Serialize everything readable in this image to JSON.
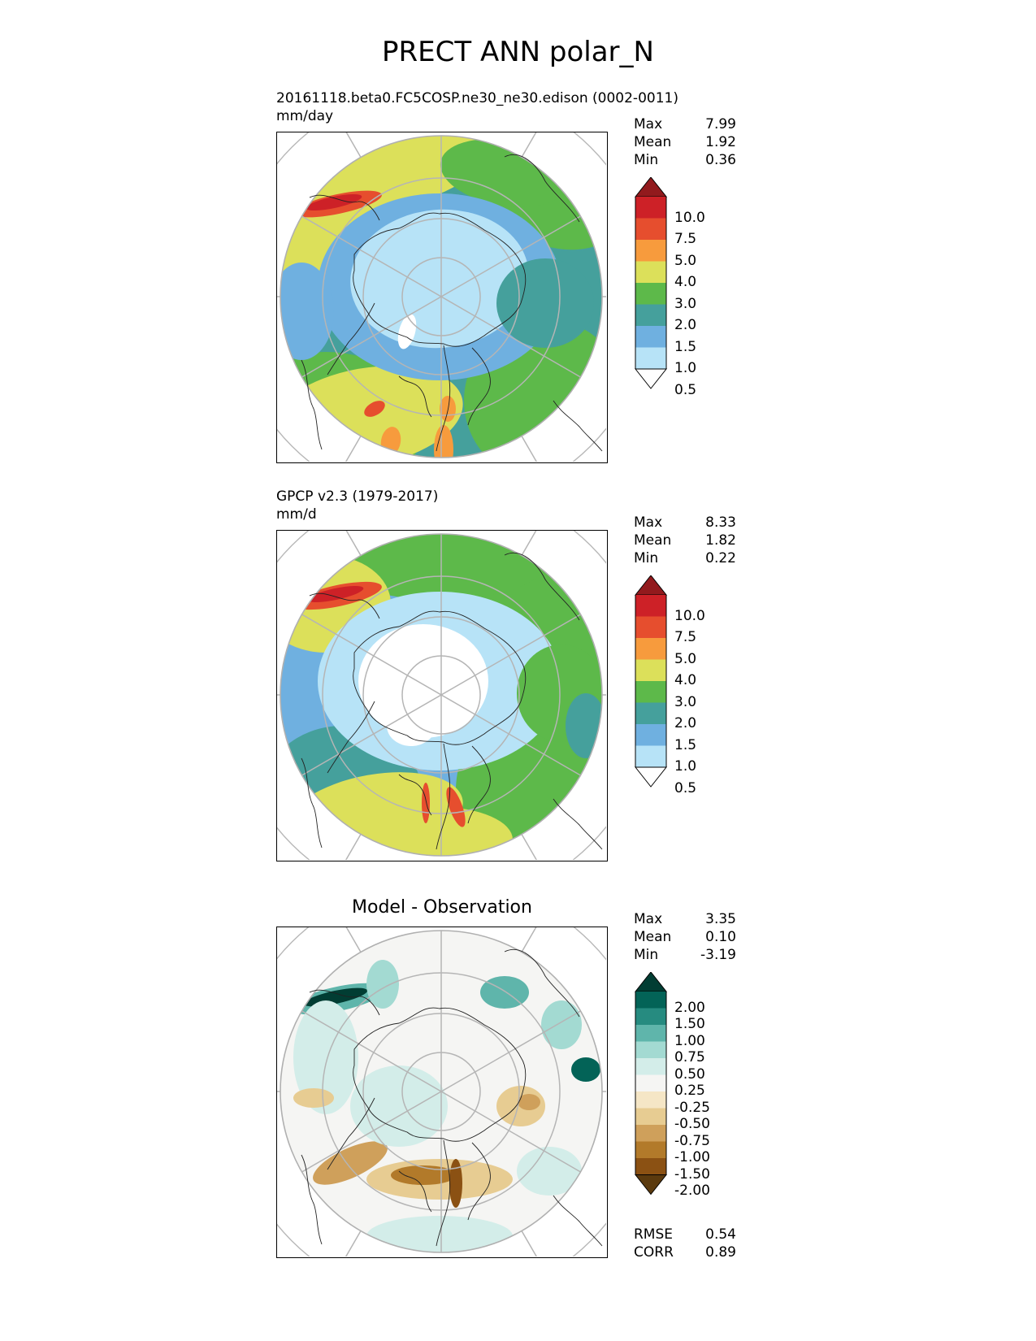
{
  "title": "PRECT ANN polar_N",
  "panels": [
    {
      "id": "model",
      "subtitle_lines": [
        "20161118.beta0.FC5COSP.ne30_ne30.edison (0002-0011)",
        "mm/day"
      ],
      "center_title": "",
      "stats": [
        {
          "label": "Max",
          "value": "7.99"
        },
        {
          "label": "Mean",
          "value": "1.92"
        },
        {
          "label": "Min",
          "value": "0.36"
        }
      ],
      "colorbar": {
        "labels": [
          "10.0",
          "7.5",
          "5.0",
          "4.0",
          "3.0",
          "2.0",
          "1.5",
          "1.0",
          "0.5"
        ],
        "colors": [
          "#ffffff",
          "#b7e3f7",
          "#6fb0e0",
          "#45a09c",
          "#5db94a",
          "#dce05a",
          "#f79b3d",
          "#e64e2e",
          "#cd2127",
          "#921a1d"
        ]
      }
    },
    {
      "id": "obs",
      "subtitle_lines": [
        "GPCP v2.3 (1979-2017)",
        "mm/d"
      ],
      "center_title": "",
      "stats": [
        {
          "label": "Max",
          "value": "8.33"
        },
        {
          "label": "Mean",
          "value": "1.82"
        },
        {
          "label": "Min",
          "value": "0.22"
        }
      ],
      "colorbar": {
        "labels": [
          "10.0",
          "7.5",
          "5.0",
          "4.0",
          "3.0",
          "2.0",
          "1.5",
          "1.0",
          "0.5"
        ],
        "colors": [
          "#ffffff",
          "#b7e3f7",
          "#6fb0e0",
          "#45a09c",
          "#5db94a",
          "#dce05a",
          "#f79b3d",
          "#e64e2e",
          "#cd2127",
          "#921a1d"
        ]
      }
    },
    {
      "id": "diff",
      "subtitle_lines": [],
      "center_title": "Model - Observation",
      "stats": [
        {
          "label": "Max",
          "value": "3.35"
        },
        {
          "label": "Mean",
          "value": "0.10"
        },
        {
          "label": "Min",
          "value": "-3.19"
        }
      ],
      "colorbar": {
        "labels": [
          "2.00",
          "1.50",
          "1.00",
          "0.75",
          "0.50",
          "0.25",
          "-0.25",
          "-0.50",
          "-0.75",
          "-1.00",
          "-1.50",
          "-2.00"
        ],
        "colors": [
          "#5b3a0e",
          "#8b5113",
          "#b27a2a",
          "#cfa05b",
          "#e7cc92",
          "#f5e6c6",
          "#f5f5f3",
          "#d3ede9",
          "#a3dad2",
          "#5fb5ab",
          "#268b80",
          "#036357",
          "#013d33"
        ]
      },
      "metrics": [
        {
          "label": "RMSE",
          "value": "0.54"
        },
        {
          "label": "CORR",
          "value": "0.89"
        }
      ]
    }
  ]
}
